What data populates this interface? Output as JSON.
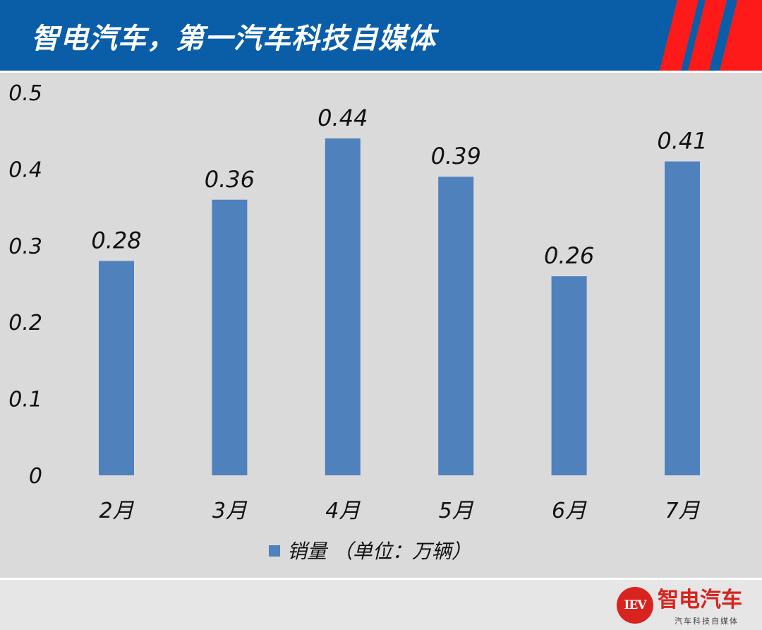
{
  "header": {
    "title": "智电汽车，第一汽车科技自媒体",
    "background_color": "#0a5ea8",
    "stripe_color": "#ff1a1a"
  },
  "chart_data": {
    "type": "bar",
    "categories": [
      "2月",
      "3月",
      "4月",
      "5月",
      "6月",
      "7月"
    ],
    "series": [
      {
        "name": "销量 （单位：万辆）",
        "values": [
          0.28,
          0.36,
          0.44,
          0.39,
          0.26,
          0.41
        ]
      }
    ],
    "data_labels": [
      "0.28",
      "0.36",
      "0.44",
      "0.39",
      "0.26",
      "0.41"
    ],
    "y_ticks": [
      "0",
      "0.1",
      "0.2",
      "0.3",
      "0.4",
      "0.5"
    ],
    "ylim": [
      0,
      0.5
    ],
    "grid": false,
    "legend_position": "bottom",
    "bar_color": "#4f81bd",
    "background_color": "#dadada"
  },
  "logo": {
    "badge_text": "IEV",
    "name": "智电汽车",
    "tagline": "汽车科技自媒体",
    "color": "#d8231f"
  }
}
